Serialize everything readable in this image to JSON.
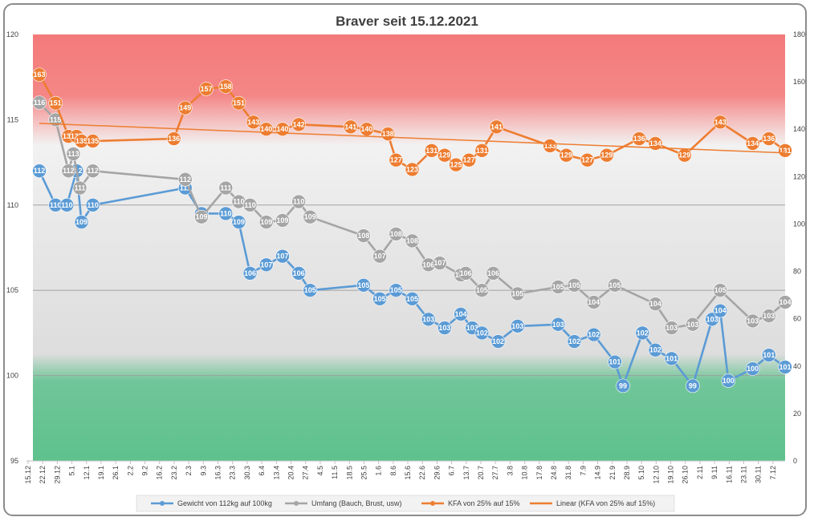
{
  "chart_data": {
    "type": "line",
    "title": "Braver seit 15.12.2021",
    "categories": [
      "15.12",
      "22.12",
      "29.12",
      "5.1",
      "12.1",
      "19.1",
      "26.1",
      "2.2",
      "9.2",
      "16.2",
      "23.2",
      "2.3",
      "9.3",
      "16.3",
      "23.3",
      "30.3",
      "6.4",
      "13.4",
      "20.4",
      "27.4",
      "4.5",
      "11.5",
      "18.5",
      "25.5",
      "1.6",
      "8.6",
      "15.6",
      "22.6",
      "29.6",
      "6.7",
      "13.7",
      "20.7",
      "27.7",
      "3.8",
      "10.8",
      "17.8",
      "24.8",
      "31.8",
      "7.9",
      "14.9",
      "21.9",
      "28.9",
      "5.10",
      "12.10",
      "19.10",
      "26.10",
      "2.11",
      "9.11",
      "16.11",
      "23.11",
      "30.11",
      "7.12"
    ],
    "y_left": {
      "min": 95,
      "max": 120,
      "ticks": [
        "95",
        "100",
        "105",
        "110",
        "115",
        "120"
      ]
    },
    "y_right": {
      "min": 0,
      "max": 180,
      "ticks": [
        "0",
        "20",
        "40",
        "60",
        "80",
        "100",
        "120",
        "140",
        "160",
        "180"
      ]
    },
    "bands": [
      {
        "name": "red",
        "from": 115,
        "to": 120,
        "color": "#f26a6a"
      },
      {
        "name": "green",
        "from": 95,
        "to": 100,
        "color": "#5ec28d"
      }
    ],
    "gridlines": [
      100,
      105,
      110
    ],
    "series": [
      {
        "name": "Gewicht von 112kg auf 100kg",
        "axis": "left",
        "color": "#5b9bd5",
        "marker_color": "#5b9bd5",
        "points": [
          {
            "x": 0.0,
            "y": 112,
            "label": "112"
          },
          {
            "x": 1.0,
            "y": 110,
            "label": "110"
          },
          {
            "x": 1.7,
            "y": 110,
            "label": "110"
          },
          {
            "x": 2.3,
            "y": 112,
            "label": "112"
          },
          {
            "x": 2.6,
            "y": 109,
            "label": "109"
          },
          {
            "x": 3.3,
            "y": 110,
            "label": "110"
          },
          {
            "x": 9.0,
            "y": 111,
            "label": "111"
          },
          {
            "x": 10.0,
            "y": 109.5,
            "label": "110"
          },
          {
            "x": 11.5,
            "y": 109.5,
            "label": "110"
          },
          {
            "x": 12.3,
            "y": 109,
            "label": "109"
          },
          {
            "x": 13.0,
            "y": 106,
            "label": "106"
          },
          {
            "x": 14.0,
            "y": 106.5,
            "label": "107"
          },
          {
            "x": 15.0,
            "y": 107,
            "label": "107"
          },
          {
            "x": 16.0,
            "y": 106,
            "label": "106"
          },
          {
            "x": 16.7,
            "y": 105,
            "label": "105"
          },
          {
            "x": 20.0,
            "y": 105.3,
            "label": "105"
          },
          {
            "x": 21.0,
            "y": 104.5,
            "label": "105"
          },
          {
            "x": 22.0,
            "y": 105,
            "label": "105"
          },
          {
            "x": 23.0,
            "y": 104.5,
            "label": "105"
          },
          {
            "x": 24.0,
            "y": 103.3,
            "label": "103"
          },
          {
            "x": 25.0,
            "y": 102.8,
            "label": "103"
          },
          {
            "x": 26.0,
            "y": 103.6,
            "label": "104"
          },
          {
            "x": 26.7,
            "y": 102.8,
            "label": "103"
          },
          {
            "x": 27.3,
            "y": 102.5,
            "label": "102"
          },
          {
            "x": 28.3,
            "y": 102,
            "label": "102"
          },
          {
            "x": 29.5,
            "y": 102.9,
            "label": "103"
          },
          {
            "x": 32.0,
            "y": 103,
            "label": "103"
          },
          {
            "x": 33.0,
            "y": 102,
            "label": "102"
          },
          {
            "x": 34.2,
            "y": 102.4,
            "label": "102"
          },
          {
            "x": 35.5,
            "y": 100.8,
            "label": "101"
          },
          {
            "x": 36.0,
            "y": 99.4,
            "label": "99"
          },
          {
            "x": 37.2,
            "y": 102.5,
            "label": "102"
          },
          {
            "x": 38.0,
            "y": 101.5,
            "label": "102"
          },
          {
            "x": 39.0,
            "y": 101,
            "label": "101"
          },
          {
            "x": 40.3,
            "y": 99.4,
            "label": "99"
          },
          {
            "x": 41.5,
            "y": 103.3,
            "label": "103"
          },
          {
            "x": 42.0,
            "y": 103.8,
            "label": "104"
          },
          {
            "x": 42.5,
            "y": 99.7,
            "label": "100"
          },
          {
            "x": 44.0,
            "y": 100.4,
            "label": "100"
          },
          {
            "x": 45.0,
            "y": 101.2,
            "label": "101"
          },
          {
            "x": 46.0,
            "y": 100.5,
            "label": "101"
          }
        ]
      },
      {
        "name": "Umfang (Bauch, Brust, usw)",
        "axis": "left",
        "color": "#a5a5a5",
        "marker_color": "#a5a5a5",
        "points": [
          {
            "x": 0.0,
            "y": 116,
            "label": "116"
          },
          {
            "x": 1.0,
            "y": 115,
            "label": "115"
          },
          {
            "x": 1.8,
            "y": 112,
            "label": "112"
          },
          {
            "x": 2.1,
            "y": 113,
            "label": "113"
          },
          {
            "x": 2.5,
            "y": 111,
            "label": "111"
          },
          {
            "x": 3.3,
            "y": 112,
            "label": "112"
          },
          {
            "x": 9.0,
            "y": 111.5,
            "label": "112"
          },
          {
            "x": 10.0,
            "y": 109.3,
            "label": "109"
          },
          {
            "x": 11.5,
            "y": 111,
            "label": "111"
          },
          {
            "x": 12.3,
            "y": 110.2,
            "label": "110"
          },
          {
            "x": 13.0,
            "y": 110,
            "label": "110"
          },
          {
            "x": 14.0,
            "y": 109,
            "label": "109"
          },
          {
            "x": 15.0,
            "y": 109.1,
            "label": "109"
          },
          {
            "x": 16.0,
            "y": 110.2,
            "label": "110"
          },
          {
            "x": 16.7,
            "y": 109.3,
            "label": "109"
          },
          {
            "x": 20.0,
            "y": 108.2,
            "label": "108"
          },
          {
            "x": 21.0,
            "y": 107,
            "label": "107"
          },
          {
            "x": 22.0,
            "y": 108.3,
            "label": "108"
          },
          {
            "x": 23.0,
            "y": 107.9,
            "label": "108"
          },
          {
            "x": 24.0,
            "y": 106.5,
            "label": "106"
          },
          {
            "x": 24.7,
            "y": 106.6,
            "label": "107"
          },
          {
            "x": 26.0,
            "y": 105.9,
            "label": "106"
          },
          {
            "x": 26.3,
            "y": 106,
            "label": "106"
          },
          {
            "x": 27.3,
            "y": 105,
            "label": "105"
          },
          {
            "x": 28.0,
            "y": 106,
            "label": "106"
          },
          {
            "x": 29.5,
            "y": 104.8,
            "label": "105"
          },
          {
            "x": 32.0,
            "y": 105.2,
            "label": "105"
          },
          {
            "x": 33.0,
            "y": 105.3,
            "label": "105"
          },
          {
            "x": 34.2,
            "y": 104.3,
            "label": "104"
          },
          {
            "x": 35.5,
            "y": 105.3,
            "label": "105"
          },
          {
            "x": 38.0,
            "y": 104.2,
            "label": "104"
          },
          {
            "x": 39.0,
            "y": 102.8,
            "label": "103"
          },
          {
            "x": 40.3,
            "y": 103,
            "label": "103"
          },
          {
            "x": 42.0,
            "y": 105,
            "label": "105"
          },
          {
            "x": 44.0,
            "y": 103.2,
            "label": "103"
          },
          {
            "x": 45.0,
            "y": 103.5,
            "label": "103"
          },
          {
            "x": 46.0,
            "y": 104.3,
            "label": "104"
          }
        ]
      },
      {
        "name": "KFA von 25% auf 15%",
        "axis": "right",
        "color": "#ed7d31",
        "marker_color": "#ed7d31",
        "points": [
          {
            "x": 0.0,
            "y": 163,
            "label": "163"
          },
          {
            "x": 1.0,
            "y": 151,
            "label": "151"
          },
          {
            "x": 1.8,
            "y": 137,
            "label": "137"
          },
          {
            "x": 2.3,
            "y": 137,
            "label": "137"
          },
          {
            "x": 2.6,
            "y": 135,
            "label": "135"
          },
          {
            "x": 3.3,
            "y": 135,
            "label": "135"
          },
          {
            "x": 8.3,
            "y": 136,
            "label": "136"
          },
          {
            "x": 9.0,
            "y": 149,
            "label": "149"
          },
          {
            "x": 10.3,
            "y": 157,
            "label": "157"
          },
          {
            "x": 11.5,
            "y": 158,
            "label": "158"
          },
          {
            "x": 12.3,
            "y": 151,
            "label": "151"
          },
          {
            "x": 13.2,
            "y": 143,
            "label": "143"
          },
          {
            "x": 14.0,
            "y": 140,
            "label": "140"
          },
          {
            "x": 15.0,
            "y": 140,
            "label": "140"
          },
          {
            "x": 16.0,
            "y": 142,
            "label": "142"
          },
          {
            "x": 19.2,
            "y": 141,
            "label": "141"
          },
          {
            "x": 20.2,
            "y": 140,
            "label": "140"
          },
          {
            "x": 21.5,
            "y": 138,
            "label": "138"
          },
          {
            "x": 22.0,
            "y": 127,
            "label": "127"
          },
          {
            "x": 23.0,
            "y": 123,
            "label": "123"
          },
          {
            "x": 24.2,
            "y": 131,
            "label": "131"
          },
          {
            "x": 25.0,
            "y": 129,
            "label": "129"
          },
          {
            "x": 25.7,
            "y": 125,
            "label": "125"
          },
          {
            "x": 26.5,
            "y": 127,
            "label": "127"
          },
          {
            "x": 27.3,
            "y": 131,
            "label": "131"
          },
          {
            "x": 28.2,
            "y": 141,
            "label": "141"
          },
          {
            "x": 31.5,
            "y": 133,
            "label": "133"
          },
          {
            "x": 32.5,
            "y": 129,
            "label": "129"
          },
          {
            "x": 33.8,
            "y": 127,
            "label": "127"
          },
          {
            "x": 35.0,
            "y": 129,
            "label": "129"
          },
          {
            "x": 37.0,
            "y": 136,
            "label": "136"
          },
          {
            "x": 38.0,
            "y": 134,
            "label": "134"
          },
          {
            "x": 39.8,
            "y": 129,
            "label": "129"
          },
          {
            "x": 42.0,
            "y": 143,
            "label": "143"
          },
          {
            "x": 44.0,
            "y": 134,
            "label": "134"
          },
          {
            "x": 45.0,
            "y": 136,
            "label": "136"
          },
          {
            "x": 46.0,
            "y": 131,
            "label": "131"
          }
        ]
      },
      {
        "name": "Linear (KFA von 25% auf 15%)",
        "axis": "right",
        "color": "#ed7d31",
        "trend": {
          "x0": 0,
          "y0": 142.5,
          "x1": 46,
          "y1": 130
        }
      }
    ],
    "legend": {
      "position": "bottom"
    },
    "grid": true
  }
}
